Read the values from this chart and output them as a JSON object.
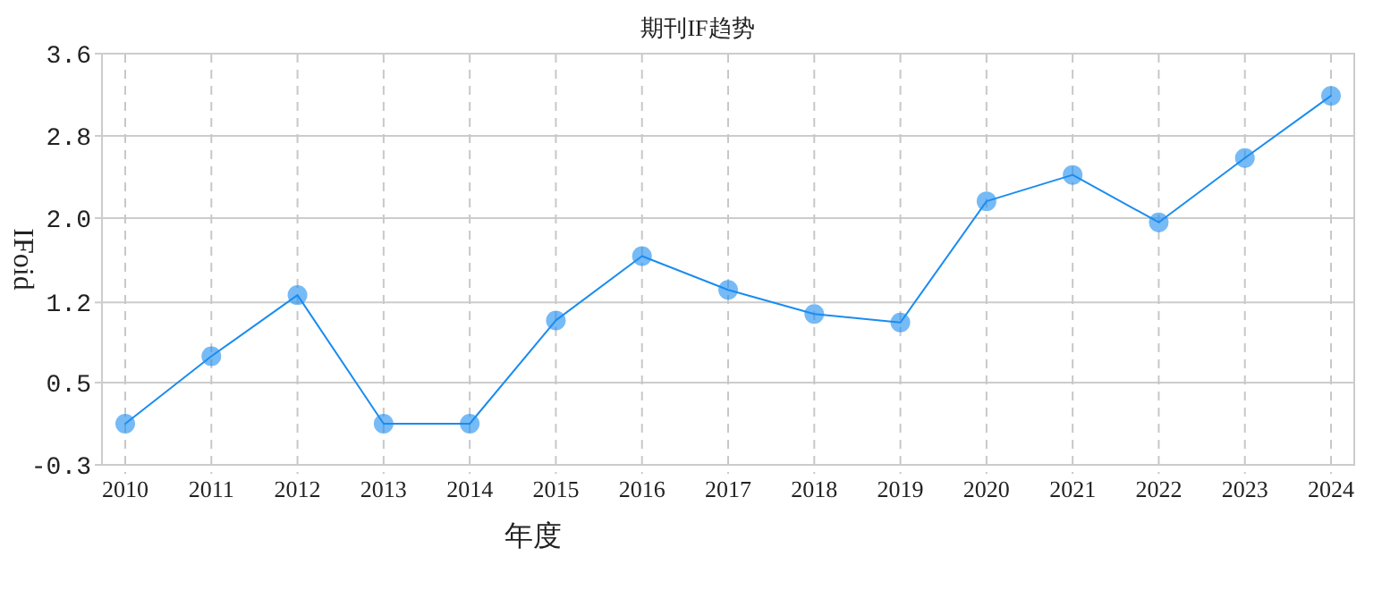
{
  "chart_data": {
    "type": "line",
    "title": "期刊IF趋势",
    "xlabel": "年度",
    "ylabel": "IFoid",
    "categories": [
      "2010",
      "2011",
      "2012",
      "2013",
      "2014",
      "2015",
      "2016",
      "2017",
      "2018",
      "2019",
      "2020",
      "2021",
      "2022",
      "2023",
      "2024"
    ],
    "series": [
      {
        "color": "#1a8cf0",
        "values": [
          0.09,
          0.73,
          1.31,
          0.09,
          0.09,
          1.07,
          1.68,
          1.36,
          1.13,
          1.05,
          2.2,
          2.45,
          2.0,
          2.61,
          3.2
        ]
      }
    ],
    "ylim": [
      -0.3,
      3.6
    ],
    "yticks": [
      -0.3,
      {
        "value": 0.48,
        "label": "0.5"
      },
      {
        "value": 1.24,
        "label": "1.2"
      },
      {
        "value": 2.04,
        "label": "2.0"
      },
      {
        "value": 2.82,
        "label": "2.8"
      },
      3.6
    ],
    "grid": true,
    "marker": "circle",
    "line_style": "solid"
  }
}
